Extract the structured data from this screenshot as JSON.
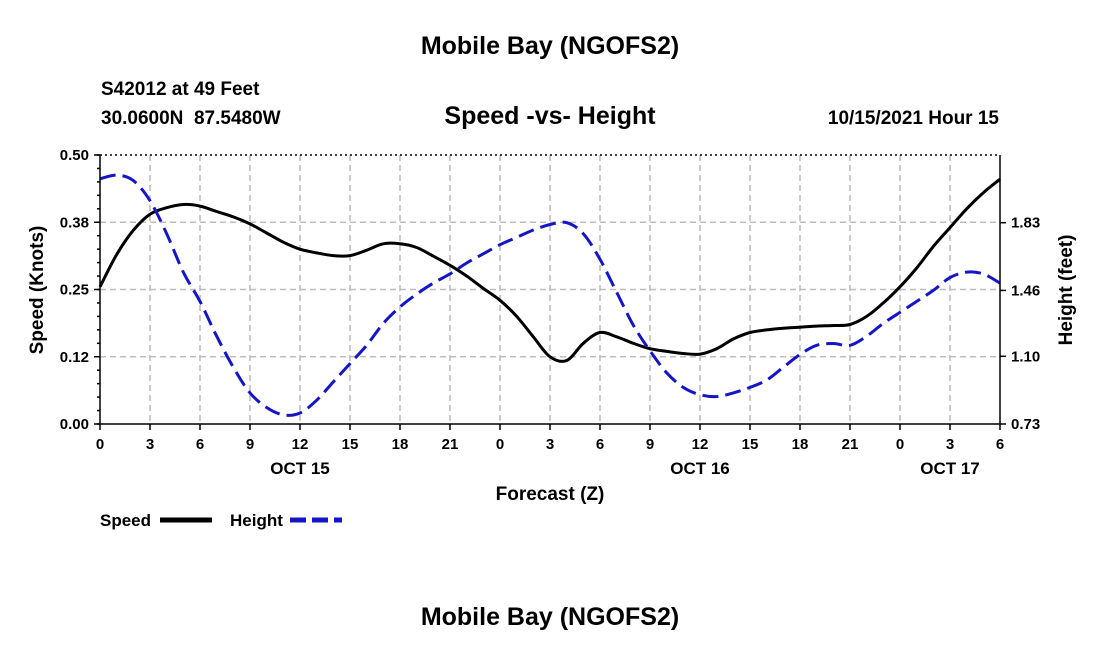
{
  "chart_data": {
    "type": "line",
    "title": "Mobile Bay (NGOFS2)",
    "repeat_title": "Mobile Bay (NGOFS2)",
    "station": "S42012 at 49 Feet",
    "coordinates": "30.0600N  87.5480W",
    "subtitle": "Speed -vs- Height",
    "timestamp": "10/15/2021 Hour 15",
    "xlabel": "Forecast (Z)",
    "ylabel_left": "Speed (Knots)",
    "ylabel_right": "Height (feet)",
    "x_range": [
      0,
      54
    ],
    "x_tick_values": [
      0,
      3,
      6,
      9,
      12,
      15,
      18,
      21,
      24,
      27,
      30,
      33,
      36,
      39,
      42,
      45,
      48,
      51,
      54
    ],
    "x_tick_labels": [
      "0",
      "3",
      "6",
      "9",
      "12",
      "15",
      "18",
      "21",
      "0",
      "3",
      "6",
      "9",
      "12",
      "15",
      "18",
      "21",
      "0",
      "3",
      "6"
    ],
    "date_labels": [
      {
        "x": 12,
        "label": "OCT 15"
      },
      {
        "x": 36,
        "label": "OCT 16"
      },
      {
        "x": 51,
        "label": "OCT 17"
      }
    ],
    "y_left_range": [
      0,
      0.5
    ],
    "y_left_ticks": [
      0,
      0.125,
      0.25,
      0.375,
      0.5
    ],
    "y_left_tick_labels": [
      "0.00",
      "0.12",
      "0.25",
      "0.38",
      "0.50"
    ],
    "y_right_range": [
      0.73,
      2.2
    ],
    "y_right_ticks": [
      0.73,
      1.1,
      1.46,
      1.83
    ],
    "y_right_tick_labels": [
      "0.73",
      "1.10",
      "1.46",
      "1.83"
    ],
    "series": [
      {
        "name": "Speed",
        "axis": "left",
        "color": "#000000",
        "dash": "solid",
        "x": [
          0,
          1,
          2,
          3,
          4,
          5,
          6,
          7,
          8,
          9,
          10,
          11,
          12,
          13,
          14,
          15,
          16,
          17,
          18,
          19,
          20,
          21,
          22,
          23,
          24,
          25,
          26,
          27,
          28,
          29,
          30,
          31,
          32,
          33,
          34,
          35,
          36,
          37,
          38,
          39,
          40,
          41,
          42,
          43,
          44,
          45,
          46,
          47,
          48,
          49,
          50,
          51,
          52,
          53,
          54
        ],
        "values": [
          0.255,
          0.315,
          0.36,
          0.39,
          0.402,
          0.408,
          0.405,
          0.395,
          0.385,
          0.372,
          0.355,
          0.338,
          0.325,
          0.318,
          0.313,
          0.313,
          0.323,
          0.335,
          0.335,
          0.328,
          0.312,
          0.295,
          0.275,
          0.252,
          0.23,
          0.2,
          0.162,
          0.125,
          0.118,
          0.15,
          0.17,
          0.162,
          0.15,
          0.14,
          0.135,
          0.131,
          0.13,
          0.14,
          0.158,
          0.17,
          0.175,
          0.178,
          0.18,
          0.182,
          0.183,
          0.185,
          0.2,
          0.225,
          0.255,
          0.29,
          0.33,
          0.365,
          0.4,
          0.43,
          0.455
        ]
      },
      {
        "name": "Height",
        "axis": "right",
        "color": "#1515c8",
        "dash": "dashed",
        "x": [
          0,
          1,
          2,
          3,
          4,
          5,
          6,
          7,
          8,
          9,
          10,
          11,
          12,
          13,
          14,
          15,
          16,
          17,
          18,
          19,
          20,
          21,
          22,
          23,
          24,
          25,
          26,
          27,
          28,
          29,
          30,
          31,
          32,
          33,
          34,
          35,
          36,
          37,
          38,
          39,
          40,
          41,
          42,
          43,
          44,
          45,
          46,
          47,
          48,
          49,
          50,
          51,
          52,
          53,
          54
        ],
        "values": [
          2.07,
          2.09,
          2.06,
          1.95,
          1.77,
          1.56,
          1.4,
          1.21,
          1.04,
          0.9,
          0.82,
          0.78,
          0.79,
          0.86,
          0.96,
          1.06,
          1.16,
          1.28,
          1.37,
          1.44,
          1.5,
          1.55,
          1.61,
          1.66,
          1.71,
          1.75,
          1.79,
          1.82,
          1.83,
          1.77,
          1.63,
          1.45,
          1.27,
          1.13,
          1.01,
          0.93,
          0.89,
          0.88,
          0.9,
          0.93,
          0.97,
          1.04,
          1.11,
          1.16,
          1.17,
          1.16,
          1.21,
          1.28,
          1.34,
          1.4,
          1.46,
          1.53,
          1.56,
          1.55,
          1.5
        ]
      }
    ],
    "legend": [
      {
        "label": "Speed",
        "color": "#000000",
        "dash": "solid"
      },
      {
        "label": "Height",
        "color": "#1515c8",
        "dash": "dashed"
      }
    ],
    "grid": true
  }
}
